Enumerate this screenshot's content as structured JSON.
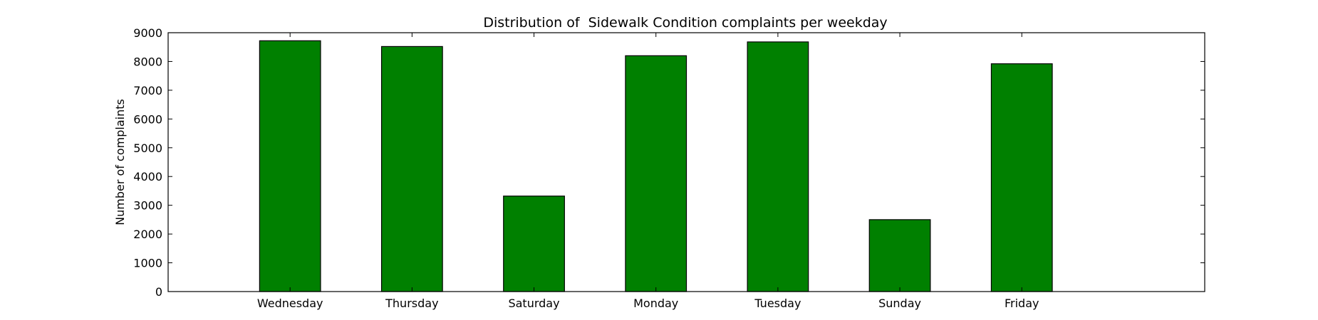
{
  "chart_data": {
    "type": "bar",
    "title": "Distribution of  Sidewalk Condition complaints per weekday",
    "xlabel": "",
    "ylabel": "Number of complaints",
    "categories": [
      "Wednesday",
      "Thursday",
      "Saturday",
      "Monday",
      "Tuesday",
      "Sunday",
      "Friday"
    ],
    "values": [
      8720,
      8520,
      3320,
      8200,
      8680,
      2500,
      7920
    ],
    "ylim": [
      0,
      9000
    ],
    "yticks": [
      "0",
      "1000",
      "2000",
      "3000",
      "4000",
      "5000",
      "6000",
      "7000",
      "8000",
      "9000"
    ],
    "grid": false,
    "legend": "none",
    "bar_color": "#008000",
    "edge_color": "#000000"
  }
}
